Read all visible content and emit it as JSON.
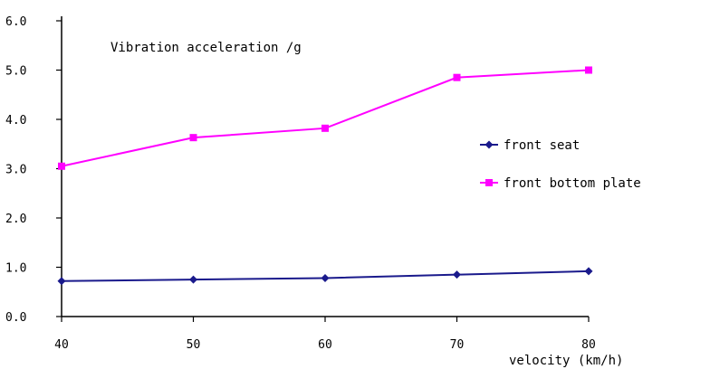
{
  "chart_data": {
    "type": "line",
    "title": "Vibration acceleration /g",
    "xlabel": "velocity (km/h)",
    "ylabel": "",
    "x": [
      40,
      50,
      60,
      70,
      80
    ],
    "xlim": [
      40,
      80
    ],
    "ylim": [
      0,
      6
    ],
    "x_ticks": [
      "40",
      "50",
      "60",
      "70",
      "80"
    ],
    "y_ticks": [
      "0.0",
      "1.0",
      "2.0",
      "3.0",
      "4.0",
      "5.0",
      "6.0"
    ],
    "grid": false,
    "legend_position": "right",
    "series": [
      {
        "name": "front seat",
        "values": [
          0.72,
          0.75,
          0.78,
          0.85,
          0.92
        ],
        "color": "#1a1a8c",
        "marker": "diamond"
      },
      {
        "name": "front bottom plate",
        "values": [
          3.05,
          3.63,
          3.82,
          4.85,
          5.0
        ],
        "color": "#ff00ff",
        "marker": "square"
      }
    ]
  }
}
